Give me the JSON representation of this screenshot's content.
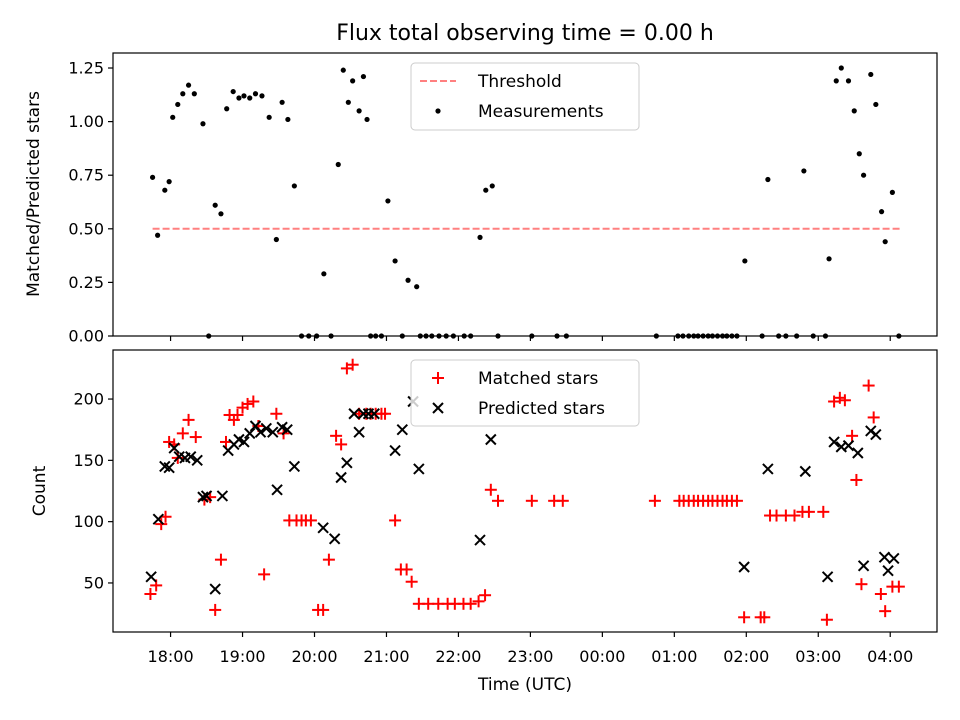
{
  "chart_data": [
    {
      "type": "scatter",
      "title": "Flux total observing time = 0.00 h",
      "xlabel": "",
      "ylabel": "Matched/Predicted stars",
      "ylim": [
        0,
        1.32
      ],
      "yticks": [
        0.0,
        0.25,
        0.5,
        0.75,
        1.0,
        1.25
      ],
      "ytick_labels": [
        "0.00",
        "0.25",
        "0.50",
        "0.75",
        "1.00",
        "1.25"
      ],
      "legend": [
        "Threshold",
        "Measurements"
      ],
      "legend_loc": "upper center",
      "threshold": {
        "name": "Threshold",
        "value": 0.5,
        "x_range": [
          17.75,
          4.17
        ],
        "color": "#ff8080"
      },
      "series": [
        {
          "name": "Measurements",
          "color": "#000000",
          "x": [
            17.75,
            17.82,
            17.92,
            17.98,
            18.03,
            18.1,
            18.17,
            18.25,
            18.33,
            18.45,
            18.53,
            18.62,
            18.7,
            18.78,
            18.87,
            18.95,
            19.02,
            19.1,
            19.18,
            19.27,
            19.37,
            19.47,
            19.55,
            19.63,
            19.72,
            19.82,
            19.92,
            20.03,
            20.13,
            20.23,
            20.33,
            20.4,
            20.47,
            20.53,
            20.62,
            20.68,
            20.73,
            20.78,
            20.85,
            20.93,
            21.02,
            21.12,
            21.22,
            21.3,
            21.42,
            21.47,
            21.55,
            21.63,
            21.73,
            21.83,
            21.93,
            22.08,
            22.17,
            22.3,
            22.38,
            22.47,
            22.55,
            23.02,
            23.37,
            23.5,
            0.75,
            1.05,
            1.12,
            1.2,
            1.27,
            1.33,
            1.4,
            1.47,
            1.53,
            1.6,
            1.67,
            1.73,
            1.8,
            1.87,
            1.98,
            2.22,
            2.3,
            2.45,
            2.55,
            2.7,
            2.8,
            2.93,
            3.1,
            3.15,
            3.25,
            3.32,
            3.42,
            3.5,
            3.57,
            3.63,
            3.73,
            3.8,
            3.88,
            3.93,
            4.03,
            4.12
          ],
          "y": [
            0.74,
            0.47,
            0.68,
            0.72,
            1.02,
            1.08,
            1.13,
            1.17,
            1.13,
            0.99,
            0.0,
            0.61,
            0.57,
            1.06,
            1.14,
            1.11,
            1.12,
            1.11,
            1.13,
            1.12,
            1.02,
            0.45,
            1.09,
            1.01,
            0.7,
            0.0,
            0.0,
            0.0,
            0.29,
            0.0,
            0.8,
            1.24,
            1.09,
            1.19,
            1.05,
            1.21,
            1.01,
            0.0,
            0.0,
            0.0,
            0.63,
            0.35,
            0.0,
            0.26,
            0.23,
            0.0,
            0.0,
            0.0,
            0.0,
            0.0,
            0.0,
            0.0,
            0.0,
            0.46,
            0.68,
            0.7,
            0.0,
            0.0,
            0.0,
            0.0,
            0.0,
            0.0,
            0.0,
            0.0,
            0.0,
            0.0,
            0.0,
            0.0,
            0.0,
            0.0,
            0.0,
            0.0,
            0.0,
            0.0,
            0.35,
            0.0,
            0.73,
            0.0,
            0.0,
            0.0,
            0.77,
            0.0,
            0.0,
            0.36,
            1.19,
            1.25,
            1.19,
            1.05,
            0.85,
            0.75,
            1.22,
            1.08,
            0.58,
            0.44,
            0.67,
            0.0
          ]
        }
      ]
    },
    {
      "type": "scatter",
      "title": "",
      "xlabel": "Time (UTC)",
      "ylabel": "Count",
      "ylim": [
        10,
        240
      ],
      "yticks": [
        50,
        100,
        150,
        200
      ],
      "ytick_labels": [
        "50",
        "100",
        "150",
        "200"
      ],
      "xtick_labels": [
        "18:00",
        "19:00",
        "20:00",
        "21:00",
        "22:00",
        "23:00",
        "00:00",
        "01:00",
        "02:00",
        "03:00",
        "04:00"
      ],
      "xlim_hours": [
        17.2,
        4.65
      ],
      "legend": [
        "Matched stars",
        "Predicted stars"
      ],
      "legend_loc": "upper center",
      "series": [
        {
          "name": "Matched stars",
          "marker": "+",
          "color": "#ff0000",
          "x": [
            17.72,
            17.8,
            17.87,
            17.93,
            17.98,
            18.05,
            18.1,
            18.17,
            18.25,
            18.35,
            18.47,
            18.55,
            18.62,
            18.7,
            18.77,
            18.82,
            18.88,
            18.93,
            19.0,
            19.07,
            19.15,
            19.22,
            19.3,
            19.47,
            19.57,
            19.65,
            19.75,
            19.82,
            19.88,
            19.95,
            20.05,
            20.12,
            20.2,
            20.3,
            20.37,
            20.45,
            20.53,
            20.62,
            20.72,
            20.78,
            20.85,
            20.93,
            20.98,
            21.12,
            21.2,
            21.28,
            21.35,
            21.45,
            21.58,
            21.72,
            21.85,
            21.95,
            22.07,
            22.17,
            22.28,
            22.37,
            22.45,
            22.55,
            23.02,
            23.33,
            23.45,
            0.73,
            1.07,
            1.13,
            1.2,
            1.27,
            1.33,
            1.4,
            1.47,
            1.53,
            1.6,
            1.67,
            1.73,
            1.8,
            1.87,
            1.97,
            2.2,
            2.25,
            2.33,
            2.42,
            2.55,
            2.67,
            2.78,
            2.87,
            3.07,
            3.12,
            3.22,
            3.3,
            3.37,
            3.47,
            3.53,
            3.6,
            3.7,
            3.77,
            3.87,
            3.93,
            4.03,
            4.12
          ],
          "y": [
            41,
            48,
            98,
            104,
            165,
            163,
            152,
            172,
            183,
            169,
            118,
            120,
            28,
            69,
            165,
            187,
            183,
            187,
            193,
            196,
            198,
            178,
            57,
            188,
            172,
            101,
            101,
            101,
            101,
            101,
            28,
            28,
            69,
            170,
            163,
            225,
            228,
            188,
            188,
            188,
            188,
            188,
            188,
            101,
            61,
            61,
            51,
            33,
            33,
            33,
            33,
            33,
            33,
            33,
            35,
            40,
            126,
            117,
            117,
            117,
            117,
            117,
            117,
            117,
            117,
            117,
            117,
            117,
            117,
            117,
            117,
            117,
            117,
            117,
            117,
            22,
            22,
            22,
            105,
            105,
            105,
            105,
            108,
            108,
            108,
            20,
            198,
            201,
            199,
            170,
            134,
            49,
            211,
            185,
            41,
            27,
            47,
            47
          ]
        },
        {
          "name": "Predicted stars",
          "marker": "x",
          "color": "#000000",
          "x": [
            17.73,
            17.83,
            17.92,
            17.98,
            18.05,
            18.12,
            18.2,
            18.28,
            18.37,
            18.45,
            18.5,
            18.62,
            18.72,
            18.8,
            18.88,
            18.95,
            19.02,
            19.1,
            19.18,
            19.25,
            19.33,
            19.42,
            19.48,
            19.55,
            19.62,
            19.72,
            20.12,
            20.28,
            20.37,
            20.45,
            20.55,
            20.62,
            20.68,
            20.75,
            20.83,
            21.12,
            21.22,
            21.37,
            21.45,
            22.3,
            22.45,
            1.97,
            2.3,
            2.82,
            3.13,
            3.22,
            3.32,
            3.42,
            3.55,
            3.63,
            3.73,
            3.8,
            3.92,
            3.97,
            4.05
          ],
          "y": [
            55,
            102,
            145,
            144,
            160,
            153,
            152,
            153,
            150,
            120,
            121,
            45,
            121,
            158,
            163,
            167,
            165,
            172,
            178,
            173,
            176,
            173,
            126,
            177,
            175,
            145,
            95,
            86,
            136,
            148,
            188,
            173,
            188,
            188,
            188,
            158,
            175,
            198,
            143,
            85,
            167,
            63,
            143,
            141,
            55,
            165,
            161,
            162,
            156,
            64,
            174,
            171,
            71,
            60,
            70
          ]
        }
      ]
    }
  ]
}
